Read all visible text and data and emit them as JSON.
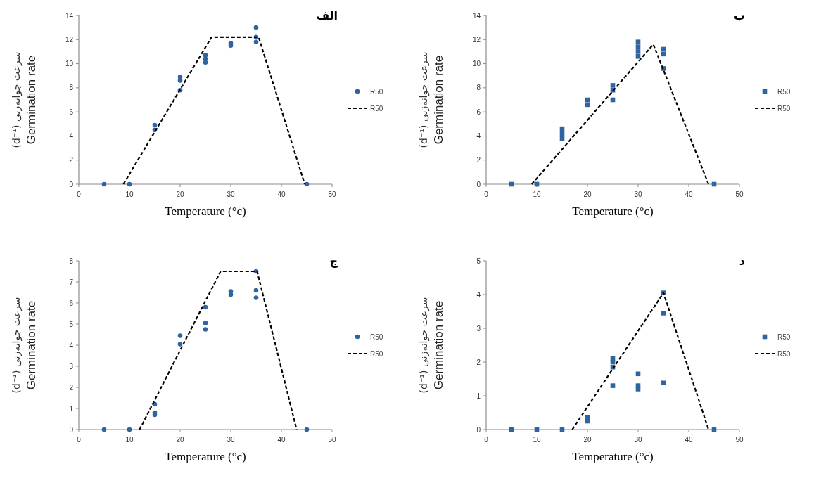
{
  "chart_data": [
    {
      "type": "scatter",
      "title": "الف",
      "xlabel": "Temperature (°c)",
      "ylabel": "سرعت جوانه‌زنی (d⁻¹)\nGermination rate",
      "xlim": [
        0,
        50
      ],
      "xticks": [
        0,
        10,
        20,
        30,
        40,
        50
      ],
      "ylim": [
        0,
        14
      ],
      "yticks": [
        0,
        2,
        4,
        6,
        8,
        10,
        12,
        14
      ],
      "legend": "right",
      "series": [
        {
          "name": "R50",
          "type": "scatter",
          "marker": "circle",
          "color": "#2f64a0",
          "x": [
            5,
            10,
            15,
            15,
            20,
            20,
            20,
            25,
            25,
            25,
            30,
            30,
            35,
            35,
            35,
            45
          ],
          "values": [
            0,
            0,
            4.5,
            4.9,
            7.8,
            8.6,
            8.9,
            10.1,
            10.4,
            10.7,
            11.5,
            11.7,
            11.8,
            12.2,
            13,
            0
          ]
        },
        {
          "name": "R50",
          "type": "line",
          "marker": "none",
          "line_style": "dashed",
          "color": "#000000",
          "x": [
            8.8,
            26.2,
            35.5,
            44.6
          ],
          "values": [
            0,
            12.2,
            12.2,
            0
          ]
        }
      ]
    },
    {
      "type": "scatter",
      "title": "ب",
      "xlabel": "Temperature (°c)",
      "ylabel": "سرعت جوانه‌زنی (d⁻¹)\nGermination rate",
      "xlim": [
        0,
        50
      ],
      "xticks": [
        0,
        10,
        20,
        30,
        40,
        50
      ],
      "ylim": [
        0,
        14
      ],
      "yticks": [
        0,
        2,
        4,
        6,
        8,
        10,
        12,
        14
      ],
      "legend": "right",
      "series": [
        {
          "name": "R50",
          "type": "scatter",
          "marker": "square",
          "color": "#2f64a0",
          "x": [
            5,
            10,
            15,
            15,
            15,
            20,
            20,
            25,
            25,
            25,
            30,
            30,
            30,
            30,
            35,
            35,
            35,
            45
          ],
          "values": [
            0,
            0,
            3.8,
            4.2,
            4.6,
            6.6,
            7,
            7,
            7.8,
            8.2,
            10.6,
            11,
            11.4,
            11.8,
            9.6,
            10.8,
            11.2,
            0
          ]
        },
        {
          "name": "R50",
          "type": "line",
          "marker": "none",
          "line_style": "dashed",
          "color": "#000000",
          "x": [
            9,
            33,
            43.9
          ],
          "values": [
            0,
            11.6,
            0
          ]
        }
      ]
    },
    {
      "type": "scatter",
      "title": "ج",
      "xlabel": "Temperature (°c)",
      "ylabel": "سرعت جوانه‌زنی (d⁻¹)\nGermination rate",
      "xlim": [
        0,
        50
      ],
      "xticks": [
        0,
        10,
        20,
        30,
        40,
        50
      ],
      "ylim": [
        0,
        8
      ],
      "yticks": [
        0,
        1,
        2,
        3,
        4,
        5,
        6,
        7,
        8
      ],
      "legend": "right",
      "series": [
        {
          "name": "R50",
          "type": "scatter",
          "marker": "circle",
          "color": "#2f64a0",
          "x": [
            5,
            10,
            15,
            15,
            15,
            20,
            20,
            25,
            25,
            25,
            30,
            30,
            35,
            35,
            35,
            45
          ],
          "values": [
            0,
            0,
            0.7,
            0.8,
            1.2,
            4.05,
            4.45,
            4.75,
            5.05,
            5.8,
            6.4,
            6.55,
            6.25,
            6.6,
            7.5,
            0
          ]
        },
        {
          "name": "R50",
          "type": "line",
          "marker": "none",
          "line_style": "dashed",
          "color": "#000000",
          "x": [
            12,
            28,
            35.2,
            43
          ],
          "values": [
            0,
            7.5,
            7.5,
            0
          ]
        }
      ]
    },
    {
      "type": "scatter",
      "title": "د",
      "xlabel": "Temperature (°c)",
      "ylabel": "سرعت جوانه‌زنی (d⁻¹)\nGermination rate",
      "xlim": [
        0,
        50
      ],
      "xticks": [
        0,
        10,
        20,
        30,
        40,
        50
      ],
      "ylim": [
        0,
        5
      ],
      "yticks": [
        0,
        1,
        2,
        3,
        4,
        5
      ],
      "legend": "right",
      "series": [
        {
          "name": "R50",
          "type": "scatter",
          "marker": "square",
          "color": "#2f64a0",
          "x": [
            5,
            10,
            15,
            20,
            20,
            25,
            25,
            25,
            25,
            30,
            30,
            30,
            35,
            35,
            35,
            45
          ],
          "values": [
            0,
            0,
            0,
            0.25,
            0.35,
            1.3,
            1.85,
            2,
            2.1,
            1.2,
            1.3,
            1.65,
            1.38,
            3.45,
            4.05,
            0
          ]
        },
        {
          "name": "R50",
          "type": "line",
          "marker": "none",
          "line_style": "dashed",
          "color": "#000000",
          "x": [
            17,
            35,
            43.9
          ],
          "values": [
            0,
            4.05,
            0
          ]
        }
      ]
    }
  ]
}
